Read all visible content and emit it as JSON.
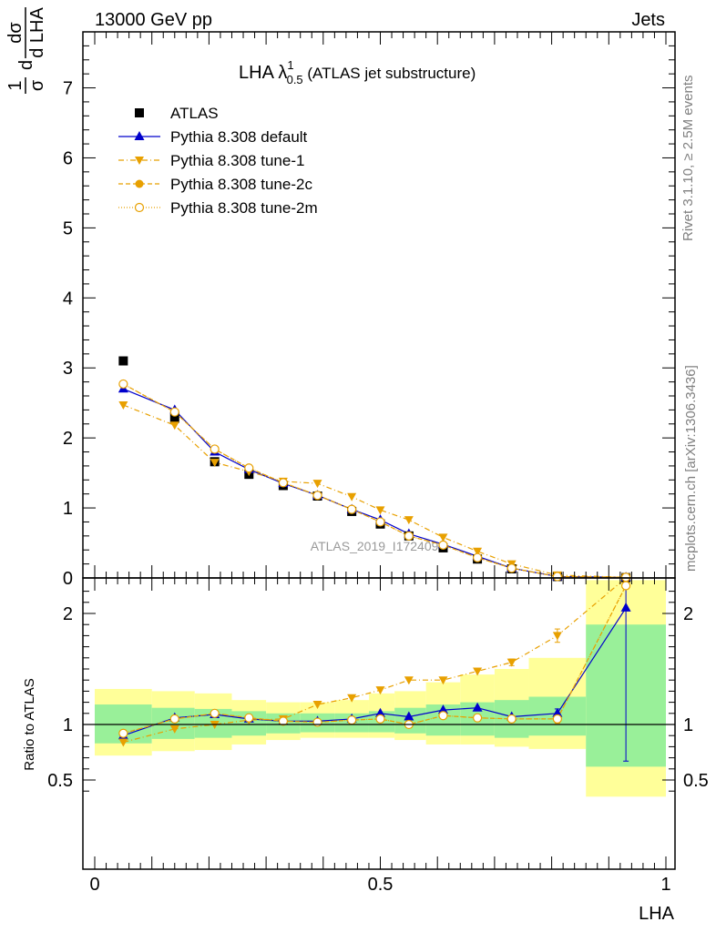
{
  "header": {
    "energy_label": "13000 GeV pp",
    "process_label": "Jets",
    "side_label_top": "Rivet 3.1.10, ≥ 2.5M events",
    "side_label_bottom": "mcplots.cern.ch [arXiv:1306.3436]",
    "watermark": "ATLAS_2019_I1724098"
  },
  "title": {
    "main": "LHA λ",
    "sup": "1",
    "sub": "0.5",
    "suffix": " (ATLAS jet substructure)"
  },
  "ylabel_main": {
    "frac1_num": "1",
    "frac1_den": "σ",
    "frac1_d": "d",
    "frac2_num": "dσ",
    "frac2_den": "d LHA"
  },
  "ylabel_ratio": "Ratio to ATLAS",
  "xlabel": "LHA",
  "colors": {
    "default": "#0000cc",
    "tune": "#e8a000",
    "green_band": "#99f099",
    "yellow_band": "#ffff99"
  },
  "legend": [
    {
      "id": "atlas",
      "label": "ATLAS",
      "marker": "square"
    },
    {
      "id": "default",
      "label": "Pythia 8.308 default",
      "marker": "triangle-up"
    },
    {
      "id": "tune1",
      "label": "Pythia 8.308 tune-1",
      "marker": "triangle-down"
    },
    {
      "id": "tune2c",
      "label": "Pythia 8.308 tune-2c",
      "marker": "filled-circle"
    },
    {
      "id": "tune2m",
      "label": "Pythia 8.308 tune-2m",
      "marker": "open-circle"
    }
  ],
  "chart_data": {
    "type": "scatter",
    "xlim": [
      0,
      1
    ],
    "main_ylim": [
      0,
      7.8
    ],
    "ratio_ylim": [
      0.35,
      2.3
    ],
    "x_ticks": [
      "0",
      "0.5",
      "1"
    ],
    "main_y_ticks": [
      "0",
      "1",
      "2",
      "3",
      "4",
      "5",
      "6",
      "7"
    ],
    "ratio_y_ticks": [
      "0.5",
      "1",
      "2"
    ],
    "x": [
      0.05,
      0.14,
      0.21,
      0.27,
      0.33,
      0.39,
      0.45,
      0.5,
      0.55,
      0.61,
      0.67,
      0.73,
      0.81,
      0.93
    ],
    "bins": [
      [
        0.0,
        0.1
      ],
      [
        0.1,
        0.175
      ],
      [
        0.175,
        0.24
      ],
      [
        0.24,
        0.3
      ],
      [
        0.3,
        0.36
      ],
      [
        0.36,
        0.42
      ],
      [
        0.42,
        0.48
      ],
      [
        0.48,
        0.525
      ],
      [
        0.525,
        0.58
      ],
      [
        0.58,
        0.64
      ],
      [
        0.64,
        0.7
      ],
      [
        0.7,
        0.76
      ],
      [
        0.76,
        0.86
      ],
      [
        0.86,
        1.0
      ]
    ],
    "series": [
      {
        "name": "ATLAS",
        "values": [
          3.1,
          2.28,
          1.66,
          1.48,
          1.32,
          1.17,
          0.95,
          0.77,
          0.6,
          0.43,
          0.27,
          0.13,
          0.02,
          0.005
        ]
      },
      {
        "name": "Pythia 8.308 default",
        "values": [
          2.7,
          2.4,
          1.8,
          1.55,
          1.35,
          1.18,
          0.98,
          0.83,
          0.63,
          0.48,
          0.31,
          0.14,
          0.02,
          0.01
        ]
      },
      {
        "name": "Pythia 8.308 tune-1",
        "values": [
          2.47,
          2.18,
          1.65,
          1.52,
          1.38,
          1.35,
          1.16,
          0.97,
          0.83,
          0.58,
          0.38,
          0.2,
          0.04,
          0.01
        ]
      },
      {
        "name": "Pythia 8.308 tune-2c",
        "values": [
          2.77,
          2.37,
          1.84,
          1.57,
          1.36,
          1.18,
          0.98,
          0.8,
          0.6,
          0.47,
          0.29,
          0.14,
          0.02,
          0.01
        ]
      },
      {
        "name": "Pythia 8.308 tune-2m",
        "values": [
          2.77,
          2.37,
          1.84,
          1.57,
          1.36,
          1.18,
          0.98,
          0.8,
          0.6,
          0.47,
          0.29,
          0.14,
          0.02,
          0.01
        ]
      }
    ],
    "ratio_series": [
      {
        "name": "Pythia 8.308 default",
        "values": [
          0.9,
          1.06,
          1.09,
          1.05,
          1.03,
          1.03,
          1.05,
          1.1,
          1.07,
          1.13,
          1.15,
          1.07,
          1.1,
          2.05
        ],
        "err": [
          0,
          0,
          0,
          0,
          0,
          0,
          0,
          0,
          0,
          0,
          0,
          0,
          0.04,
          1.38
        ]
      },
      {
        "name": "Pythia 8.308 tune-1",
        "values": [
          0.84,
          0.96,
          1.0,
          1.04,
          1.05,
          1.18,
          1.24,
          1.31,
          1.4,
          1.4,
          1.48,
          1.56,
          1.8,
          2.5
        ],
        "err": [
          0,
          0,
          0,
          0,
          0,
          0,
          0,
          0,
          0,
          0,
          0,
          0.03,
          0.06,
          0
        ]
      },
      {
        "name": "Pythia 8.308 tune-2c",
        "values": [
          0.92,
          1.05,
          1.1,
          1.06,
          1.03,
          1.02,
          1.04,
          1.05,
          1.0,
          1.08,
          1.06,
          1.05,
          1.05,
          2.25
        ],
        "err": [
          0,
          0,
          0,
          0,
          0,
          0,
          0,
          0,
          0,
          0,
          0,
          0.03,
          0.04,
          0
        ]
      },
      {
        "name": "Pythia 8.308 tune-2m",
        "values": [
          0.92,
          1.05,
          1.1,
          1.06,
          1.03,
          1.02,
          1.04,
          1.05,
          1.0,
          1.08,
          1.06,
          1.05,
          1.05,
          2.25
        ],
        "err": [
          0,
          0,
          0,
          0,
          0,
          0,
          0,
          0,
          0,
          0,
          0,
          0,
          0,
          0
        ]
      }
    ],
    "bands": {
      "green": [
        [
          0.83,
          1.18
        ],
        [
          0.87,
          1.15
        ],
        [
          0.88,
          1.14
        ],
        [
          0.9,
          1.12
        ],
        [
          0.92,
          1.1
        ],
        [
          0.93,
          1.1
        ],
        [
          0.93,
          1.1
        ],
        [
          0.93,
          1.12
        ],
        [
          0.92,
          1.15
        ],
        [
          0.9,
          1.18
        ],
        [
          0.9,
          1.2
        ],
        [
          0.88,
          1.22
        ],
        [
          0.9,
          1.25
        ],
        [
          0.62,
          1.9
        ]
      ],
      "yellow": [
        [
          0.72,
          1.32
        ],
        [
          0.76,
          1.3
        ],
        [
          0.77,
          1.28
        ],
        [
          0.82,
          1.22
        ],
        [
          0.86,
          1.2
        ],
        [
          0.88,
          1.2
        ],
        [
          0.88,
          1.22
        ],
        [
          0.88,
          1.28
        ],
        [
          0.86,
          1.3
        ],
        [
          0.82,
          1.38
        ],
        [
          0.82,
          1.45
        ],
        [
          0.8,
          1.5
        ],
        [
          0.78,
          1.6
        ],
        [
          0.35,
          2.3
        ]
      ]
    }
  }
}
